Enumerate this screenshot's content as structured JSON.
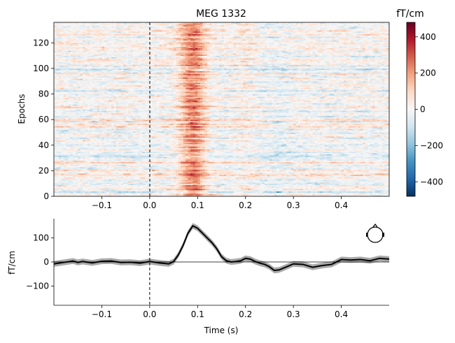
{
  "figure": {
    "title": "MEG 1332",
    "colorbar": {
      "label": "fT/cm",
      "range": [
        -480,
        480
      ],
      "ticks": [
        400,
        200,
        0,
        -200,
        -400
      ],
      "tick_labels": [
        "400",
        "200",
        "0",
        "−200",
        "−400"
      ],
      "colormap": "RdBu_r",
      "colors": [
        "#053061",
        "#2166ac",
        "#4393c3",
        "#92c5de",
        "#d1e5f0",
        "#f7f7f7",
        "#fddbc7",
        "#f4a582",
        "#d6604d",
        "#b2182b",
        "#67001f"
      ]
    },
    "head_icon": "sensor-head-icon"
  },
  "chart_data": [
    {
      "type": "heatmap",
      "name": "epochs-image",
      "ylabel": "Epochs",
      "xlim": [
        -0.2,
        0.5
      ],
      "ylim": [
        0,
        136
      ],
      "xticks": [
        -0.1,
        0.0,
        0.1,
        0.2,
        0.3,
        0.4
      ],
      "xtick_labels": [
        "−0.1",
        "0.0",
        "0.1",
        "0.2",
        "0.3",
        "0.4"
      ],
      "yticks": [
        0,
        20,
        40,
        60,
        80,
        100,
        120
      ],
      "ytick_labels": [
        "0",
        "20",
        "40",
        "60",
        "80",
        "100",
        "120"
      ],
      "n_epochs": 136,
      "n_times": 140,
      "event_marker_x": 0.0,
      "description_values": "noise around 0 fT/cm with strong positive response centered near 0.09 s"
    },
    {
      "type": "line",
      "name": "evoked-average",
      "xlabel": "Time (s)",
      "ylabel": "fT/cm",
      "xlim": [
        -0.2,
        0.5
      ],
      "ylim": [
        -180,
        180
      ],
      "xticks": [
        -0.1,
        0.0,
        0.1,
        0.2,
        0.3,
        0.4
      ],
      "xtick_labels": [
        "−0.1",
        "0.0",
        "0.1",
        "0.2",
        "0.3",
        "0.4"
      ],
      "yticks": [
        -100,
        0,
        100
      ],
      "ytick_labels": [
        "−100",
        "0",
        "100"
      ],
      "event_marker_x": 0.0,
      "ci_halfwidth": 12,
      "x": [
        -0.2,
        -0.18,
        -0.16,
        -0.15,
        -0.14,
        -0.12,
        -0.1,
        -0.08,
        -0.06,
        -0.04,
        -0.02,
        0.0,
        0.02,
        0.04,
        0.05,
        0.06,
        0.07,
        0.08,
        0.09,
        0.1,
        0.11,
        0.12,
        0.13,
        0.14,
        0.15,
        0.16,
        0.17,
        0.18,
        0.19,
        0.2,
        0.21,
        0.22,
        0.23,
        0.24,
        0.25,
        0.26,
        0.27,
        0.28,
        0.3,
        0.32,
        0.34,
        0.36,
        0.38,
        0.4,
        0.42,
        0.44,
        0.46,
        0.48,
        0.5
      ],
      "y": [
        -8,
        -2,
        4,
        -2,
        2,
        -4,
        3,
        4,
        -2,
        -1,
        -5,
        2,
        -4,
        -8,
        2,
        30,
        70,
        120,
        150,
        140,
        120,
        100,
        80,
        55,
        22,
        5,
        0,
        2,
        5,
        15,
        12,
        2,
        -5,
        -10,
        -20,
        -35,
        -33,
        -25,
        -8,
        -10,
        -22,
        -15,
        -10,
        10,
        8,
        10,
        5,
        15,
        12
      ]
    }
  ]
}
